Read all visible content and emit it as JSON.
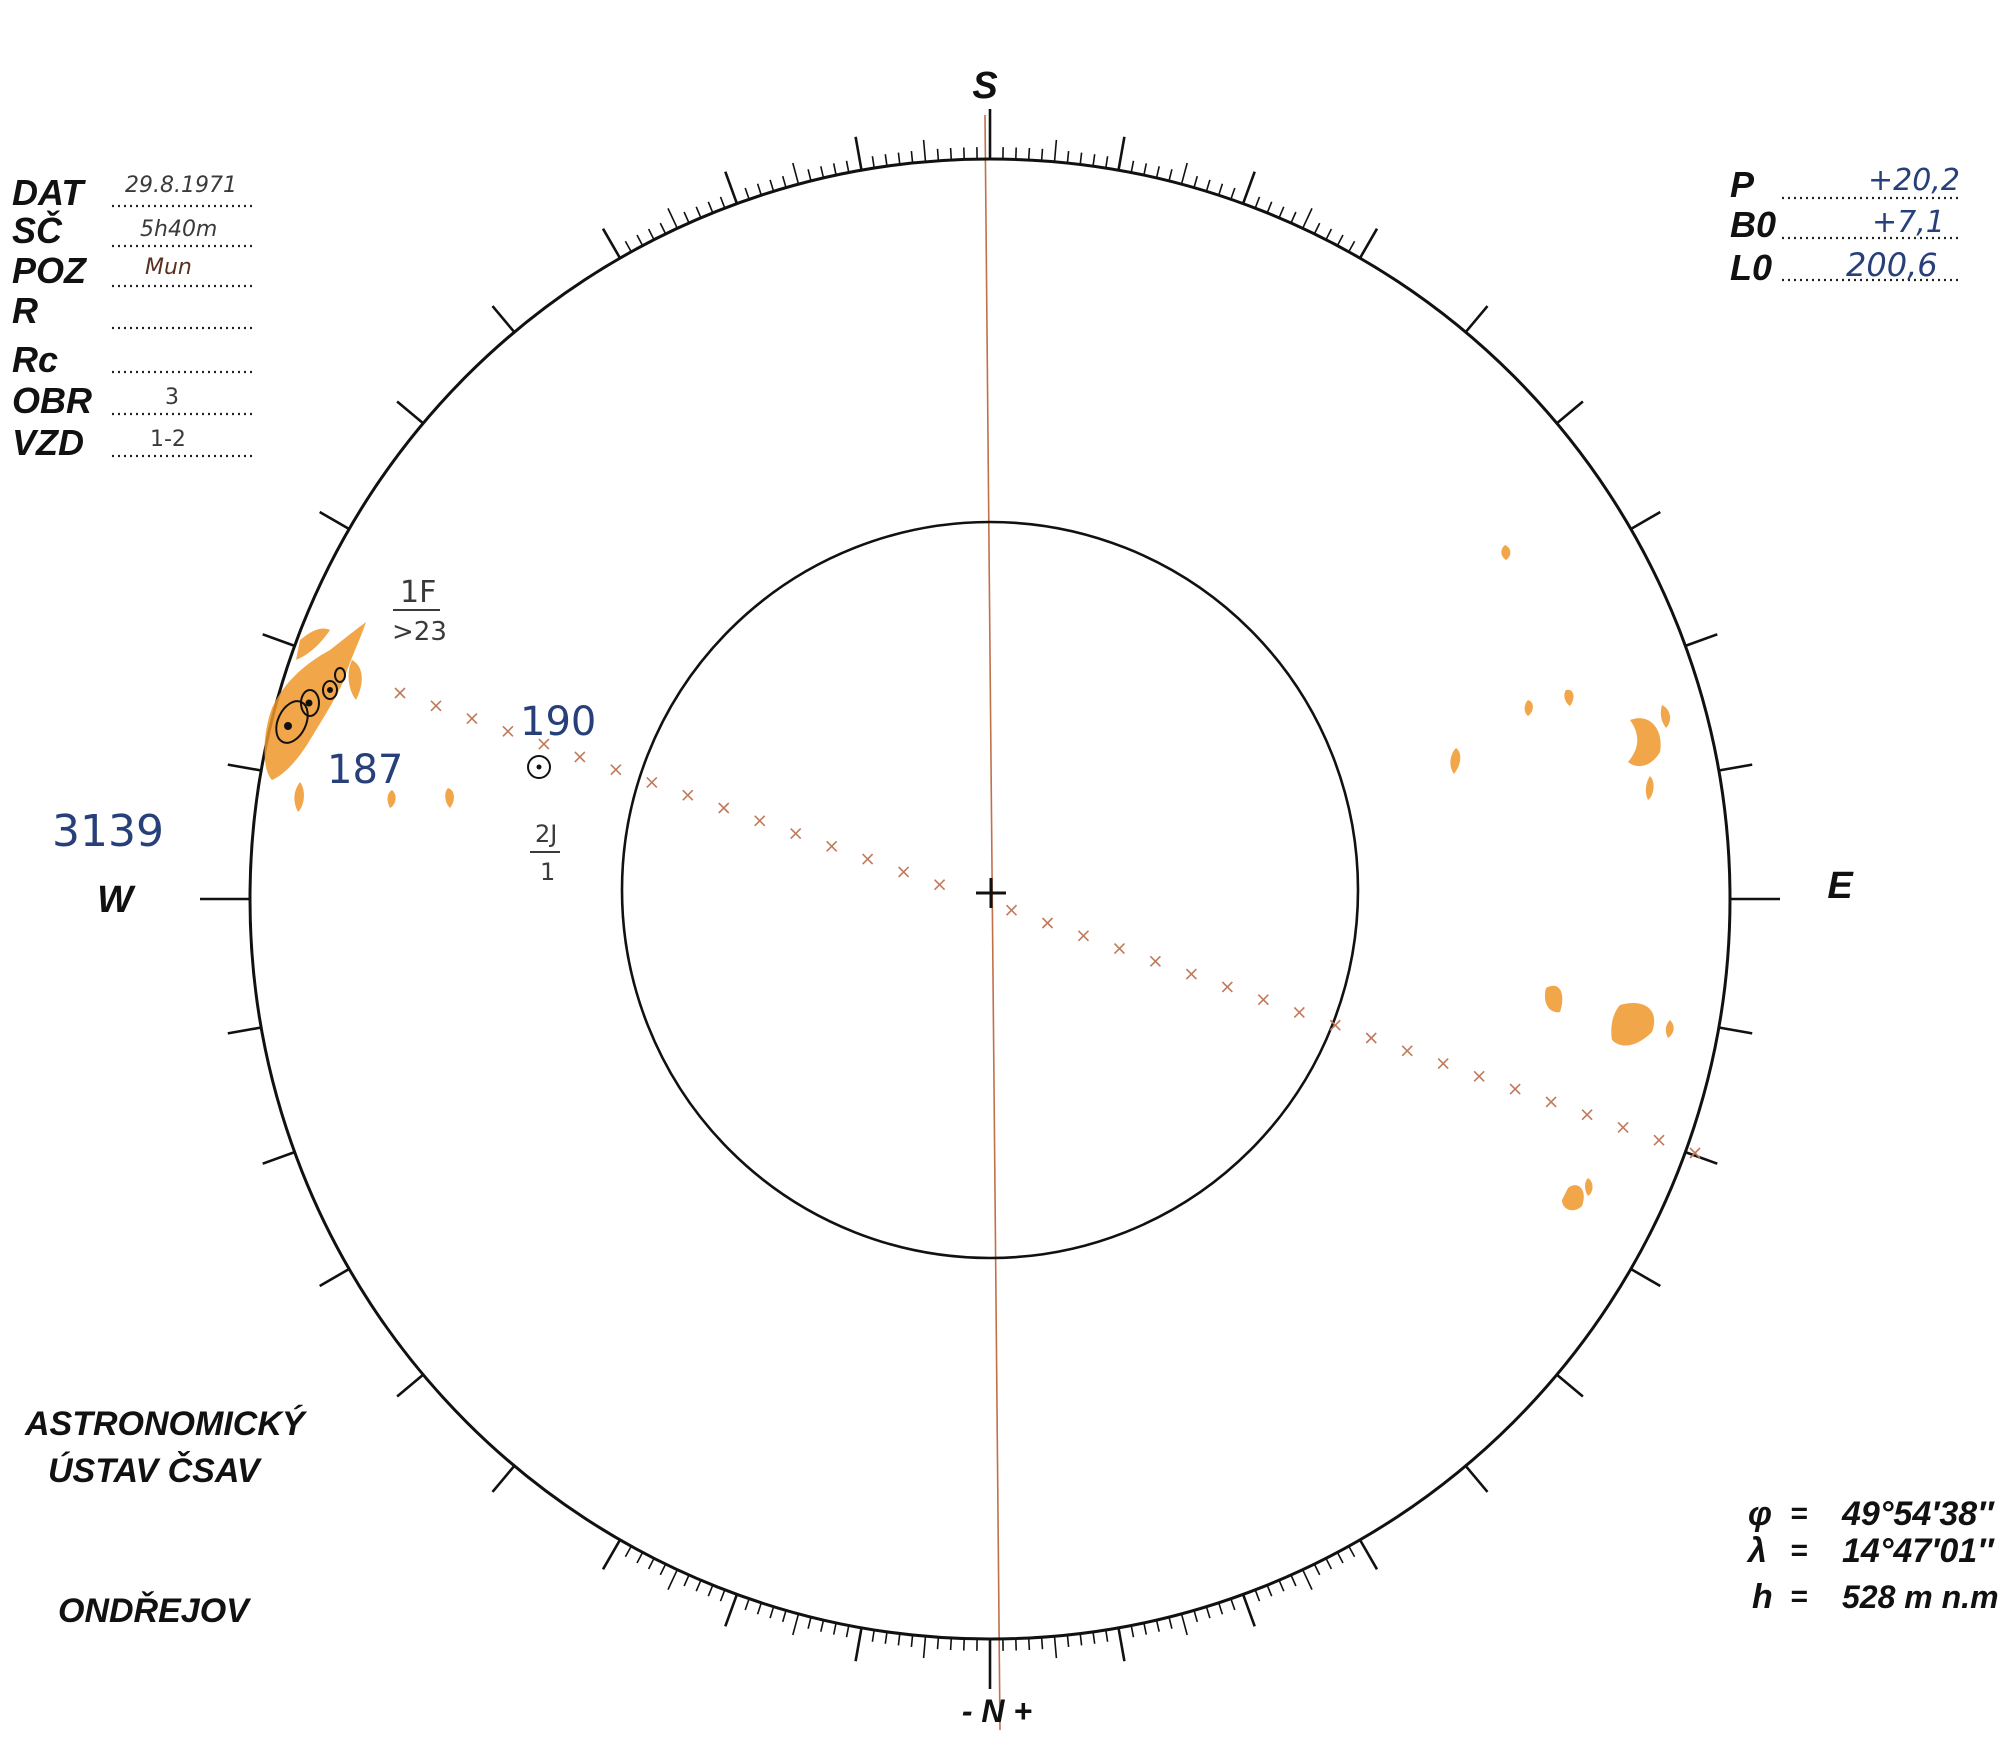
{
  "compass": {
    "top": "S",
    "bottom": "- N +",
    "left": "W",
    "right": "E"
  },
  "header_left": [
    {
      "label": "DAT",
      "value": "29.8.1971"
    },
    {
      "label": "SČ",
      "value": "5h40m"
    },
    {
      "label": "POZ",
      "value": "Mun"
    },
    {
      "label": "R",
      "value": ""
    },
    {
      "label": "Rc",
      "value": ""
    },
    {
      "label": "OBR",
      "value": "3"
    },
    {
      "label": "VZD",
      "value": "1-2"
    }
  ],
  "header_right": [
    {
      "label": "P",
      "value": "+20,2"
    },
    {
      "label": "B0",
      "value": "+7,1"
    },
    {
      "label": "L0",
      "value": "200,6"
    }
  ],
  "annotations": {
    "flare_class": "1F",
    "flare_time": ">23",
    "region_a": "190",
    "region_b": "187",
    "fraction_num": "2J",
    "fraction_den": "1",
    "sheet_number": "3139"
  },
  "institution": {
    "line1": "ASTRONOMICKÝ",
    "line2": "ÚSTAV ČSAV",
    "place": "ONDŘEJOV"
  },
  "coordinates": [
    {
      "symbol": "φ",
      "value": "49°54′38″"
    },
    {
      "symbol": "λ",
      "value": "14°47′01″"
    },
    {
      "symbol": "h",
      "value": "528 m n.m"
    }
  ],
  "colors": {
    "ink": "#111111",
    "plage": "#f0962a",
    "meridian": "#c0704a",
    "blue_ink": "#27407a"
  }
}
